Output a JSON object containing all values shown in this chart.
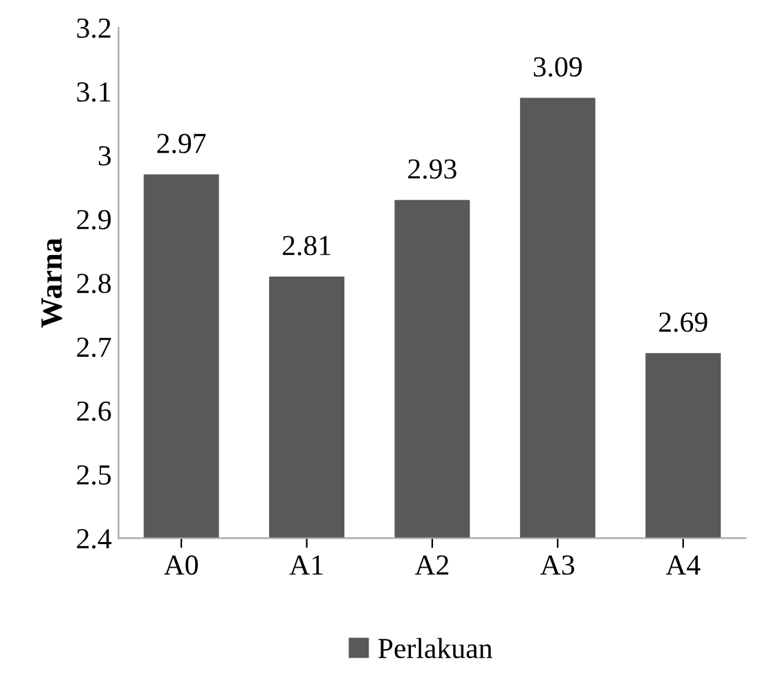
{
  "chart_data": {
    "type": "bar",
    "ylabel": "Warna",
    "categories": [
      "A0",
      "A1",
      "A2",
      "A3",
      "A4"
    ],
    "series": [
      {
        "name": "Perlakuan",
        "color": "#595959",
        "values": [
          2.97,
          2.81,
          2.93,
          3.09,
          2.69
        ]
      }
    ],
    "ylim": [
      2.4,
      3.2
    ],
    "yticks": [
      2.4,
      2.5,
      2.6,
      2.7,
      2.8,
      2.9,
      3,
      3.1,
      3.2
    ],
    "data_labels": true,
    "grid": false,
    "legend": "bottom"
  }
}
